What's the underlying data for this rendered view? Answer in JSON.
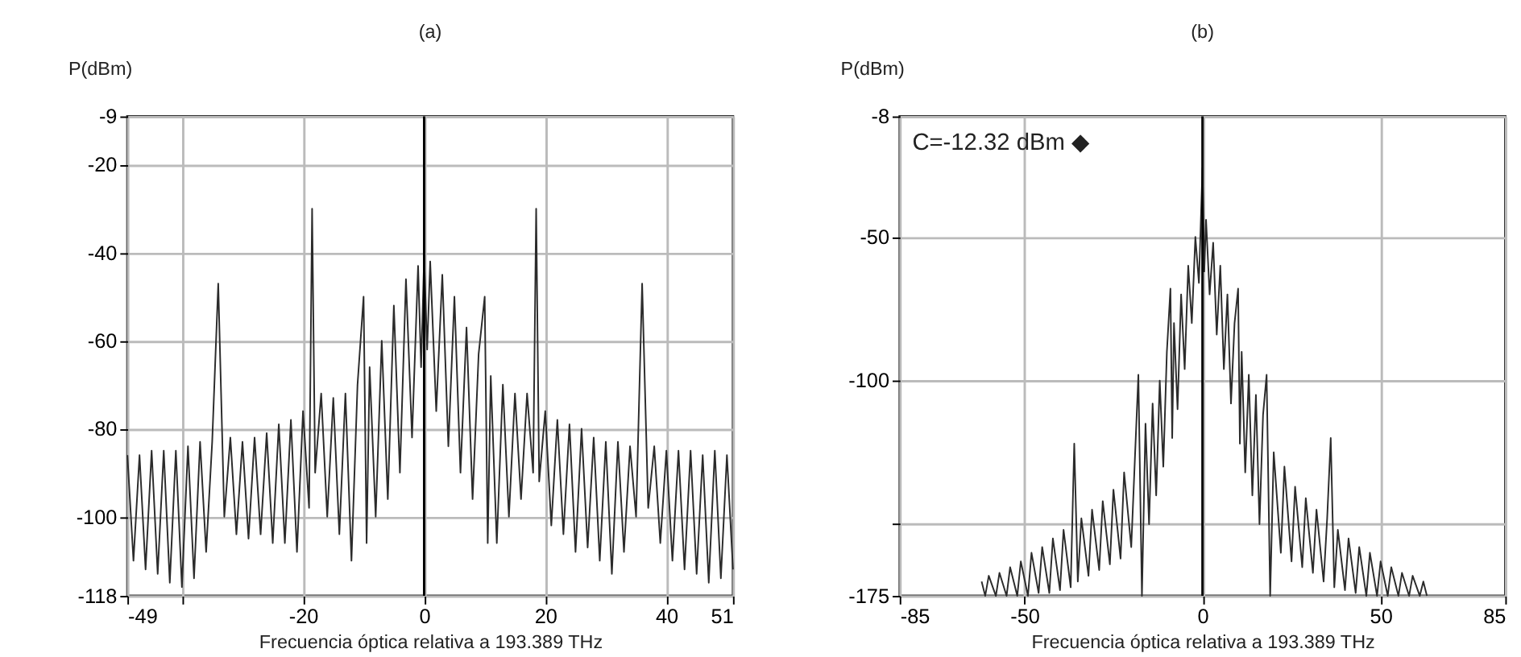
{
  "chart_data": [
    {
      "type": "line",
      "title": "(a)",
      "ylabel": "P(dBm)",
      "xlabel": "Frecuencia óptica relativa a 193.389 THz",
      "xlim": [
        -49,
        51
      ],
      "ylim": [
        -118,
        -9
      ],
      "xticks": [
        -49,
        {
          "value": -40,
          "label": null
        },
        -20,
        0,
        20,
        40,
        51
      ],
      "yticks": [
        -9,
        -20,
        -40,
        -60,
        -80,
        -100,
        -118
      ],
      "grid": true,
      "ref_lines": [
        {
          "axis": "x",
          "value": 0,
          "color": "#000000"
        }
      ],
      "series": [
        {
          "color": "#2b2b2b",
          "x": [
            -49,
            -48,
            -47,
            -46,
            -45,
            -44,
            -43,
            -42,
            -41,
            -40,
            -39,
            -38,
            -37,
            -36,
            -35,
            -34,
            -33,
            -32,
            -31,
            -30,
            -29,
            -28,
            -27,
            -26,
            -25,
            -24,
            -23,
            -22,
            -21,
            -20,
            -19,
            -18.5,
            -18,
            -17,
            -16,
            -15,
            -14,
            -13,
            -12,
            -11,
            -10,
            -9.5,
            -9,
            -8,
            -7,
            -6,
            -5,
            -4,
            -3,
            -2,
            -1,
            -0.5,
            0,
            0.5,
            1,
            2,
            3,
            4,
            5,
            6,
            7,
            8,
            9,
            10,
            10.5,
            11,
            12,
            13,
            14,
            15,
            16,
            17,
            18,
            18.5,
            19,
            20,
            21,
            22,
            23,
            24,
            25,
            26,
            27,
            28,
            29,
            30,
            31,
            32,
            33,
            34,
            35,
            36,
            37,
            38,
            39,
            40,
            41,
            42,
            43,
            44,
            45,
            46,
            47,
            48,
            49,
            50,
            51
          ],
          "values": [
            -86,
            -110,
            -86,
            -112,
            -85,
            -113,
            -85,
            -115,
            -85,
            -116,
            -84,
            -114,
            -83,
            -108,
            -83,
            -47,
            -100,
            -82,
            -104,
            -83,
            -105,
            -82,
            -104,
            -81,
            -106,
            -79,
            -106,
            -78,
            -108,
            -76,
            -98,
            -30,
            -90,
            -72,
            -100,
            -73,
            -104,
            -72,
            -110,
            -70,
            -50,
            -106,
            -66,
            -100,
            -60,
            -96,
            -52,
            -90,
            -46,
            -82,
            -43,
            -66,
            -41,
            -62,
            -42,
            -76,
            -45,
            -84,
            -50,
            -90,
            -57,
            -96,
            -63,
            -50,
            -106,
            -68,
            -106,
            -70,
            -100,
            -72,
            -96,
            -72,
            -90,
            -30,
            -92,
            -76,
            -102,
            -78,
            -104,
            -79,
            -108,
            -80,
            -107,
            -82,
            -110,
            -83,
            -113,
            -83,
            -108,
            -84,
            -100,
            -47,
            -98,
            -84,
            -106,
            -85,
            -110,
            -85,
            -112,
            -85,
            -113,
            -86,
            -115,
            -85,
            -114,
            -86,
            -112
          ]
        }
      ]
    },
    {
      "type": "line",
      "title": "(b)",
      "ylabel": "P(dBm)",
      "xlabel": "Frecuencia óptica relativa a 193.389 THz",
      "xlim": [
        -85,
        85
      ],
      "ylim": [
        -175,
        -8
      ],
      "xticks": [
        -85,
        -50,
        0,
        50,
        85
      ],
      "yticks": [
        -8,
        -50,
        -100,
        {
          "value": -150,
          "label": null
        },
        -175
      ],
      "grid": true,
      "ref_lines": [
        {
          "axis": "x",
          "value": 0,
          "color": "#000000"
        }
      ],
      "annotations": [
        "C=-12.32 dBm ◆"
      ],
      "series": [
        {
          "color": "#2b2b2b",
          "x": [
            -62,
            -61,
            -60,
            -58,
            -57,
            -55,
            -54,
            -52,
            -51,
            -49,
            -48,
            -46,
            -45,
            -43,
            -42,
            -40,
            -39,
            -37,
            -36,
            -35,
            -34,
            -32,
            -31,
            -29,
            -28,
            -26,
            -25,
            -23,
            -22,
            -20,
            -19,
            -18,
            -17,
            -16,
            -15,
            -14,
            -13,
            -12,
            -11,
            -10,
            -9,
            -8.5,
            -8,
            -7,
            -6,
            -5,
            -4,
            -3,
            -2,
            -1,
            0,
            0.5,
            1,
            2,
            3,
            4,
            5,
            6,
            7,
            8,
            9,
            10,
            10.5,
            11,
            12,
            13,
            14,
            15,
            16,
            17,
            18,
            19,
            20,
            22,
            23,
            25,
            26,
            28,
            29,
            31,
            32,
            34,
            35,
            36,
            37,
            38,
            40,
            41,
            43,
            44,
            46,
            47,
            49,
            50,
            52,
            53,
            55,
            56,
            58,
            59,
            61,
            62,
            63
          ],
          "values": [
            -170,
            -175,
            -168,
            -175,
            -167,
            -175,
            -165,
            -175,
            -163,
            -175,
            -160,
            -174,
            -158,
            -174,
            -155,
            -173,
            -152,
            -172,
            -122,
            -170,
            -148,
            -168,
            -145,
            -166,
            -142,
            -164,
            -138,
            -162,
            -132,
            -158,
            -128,
            -98,
            -175,
            -115,
            -150,
            -108,
            -140,
            -100,
            -130,
            -90,
            -68,
            -120,
            -80,
            -110,
            -70,
            -96,
            -60,
            -80,
            -50,
            -66,
            -26,
            -62,
            -44,
            -70,
            -52,
            -84,
            -60,
            -96,
            -70,
            -108,
            -80,
            -68,
            -122,
            -90,
            -132,
            -98,
            -140,
            -105,
            -150,
            -112,
            -98,
            -175,
            -125,
            -160,
            -130,
            -163,
            -137,
            -165,
            -141,
            -167,
            -145,
            -170,
            -148,
            -120,
            -172,
            -152,
            -173,
            -155,
            -174,
            -158,
            -175,
            -160,
            -175,
            -163,
            -175,
            -165,
            -175,
            -167,
            -175,
            -168,
            -175,
            -170,
            -175
          ]
        }
      ]
    }
  ]
}
